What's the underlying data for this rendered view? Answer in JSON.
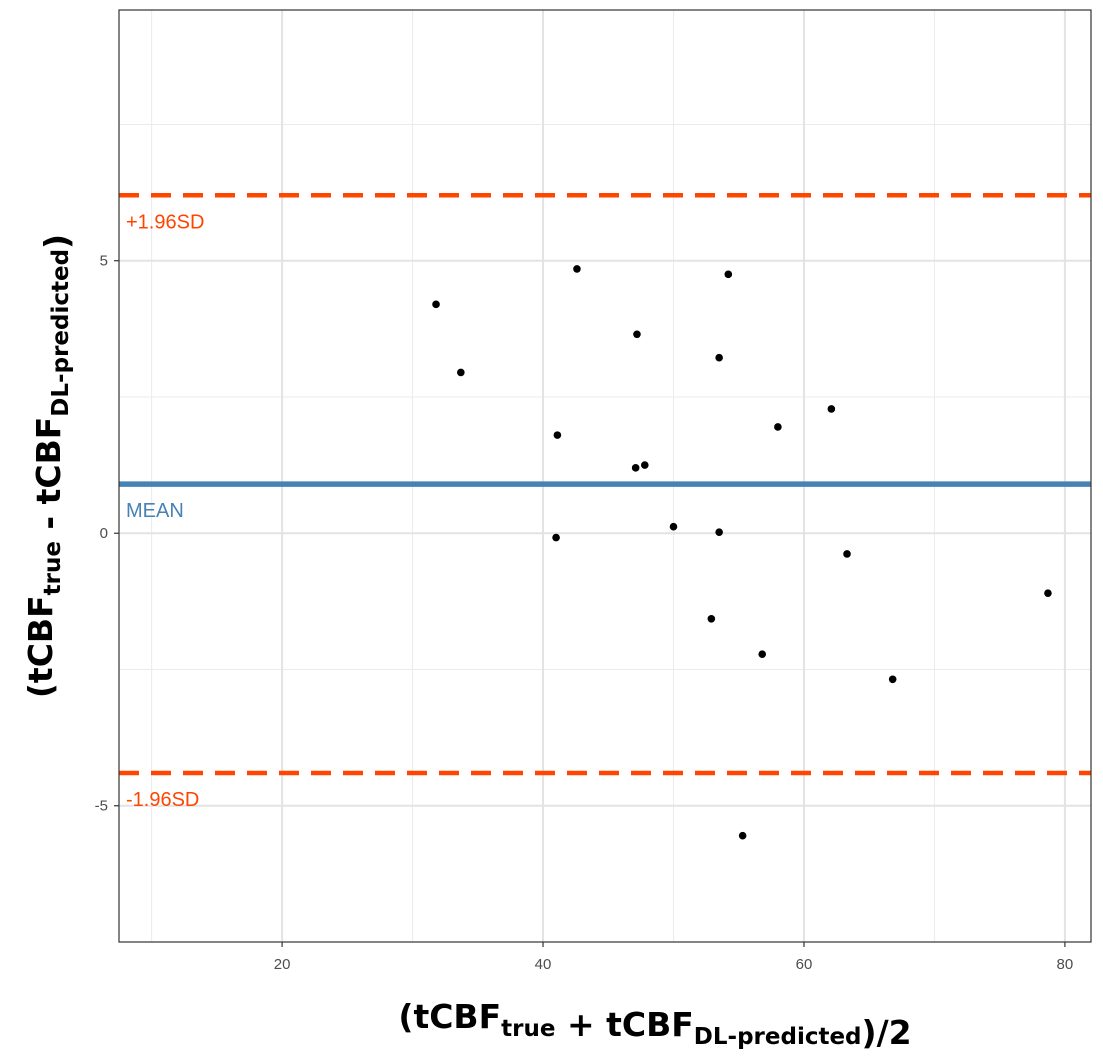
{
  "chart_data": {
    "type": "scatter",
    "title": "",
    "xlabel": {
      "parts": [
        {
          "text": "(tCBF",
          "sub": false
        },
        {
          "text": "true",
          "sub": true
        },
        {
          "text": " + tCBF",
          "sub": false
        },
        {
          "text": "DL-predicted",
          "sub": true
        },
        {
          "text": ")/2",
          "sub": false
        }
      ]
    },
    "ylabel": {
      "parts": [
        {
          "text": "(tCBF",
          "sub": false
        },
        {
          "text": "true",
          "sub": true
        },
        {
          "text": " - tCBF",
          "sub": false
        },
        {
          "text": "DL-predicted",
          "sub": true
        },
        {
          "text": ")",
          "sub": false
        }
      ]
    },
    "xlim": [
      7.5,
      82
    ],
    "ylim": [
      -7.5,
      9.6
    ],
    "xticks": [
      {
        "value": 20,
        "label": "20"
      },
      {
        "value": 40,
        "label": "40"
      },
      {
        "value": 60,
        "label": "60"
      },
      {
        "value": 80,
        "label": "80"
      }
    ],
    "yticks": [
      {
        "value": -5,
        "label": "-5"
      },
      {
        "value": 0,
        "label": "0"
      },
      {
        "value": 5,
        "label": "5"
      }
    ],
    "x_minor_gridlines": [
      10,
      30,
      50,
      70
    ],
    "y_minor_gridlines": [
      -7.5,
      -2.5,
      2.5,
      7.5
    ],
    "grid": true,
    "reference_lines": [
      {
        "name": "upper",
        "y": 6.2,
        "style": "dashed",
        "color": "#ff4500",
        "label": "+1.96SD"
      },
      {
        "name": "mean",
        "y": 0.9,
        "style": "solid",
        "color": "#4682b4",
        "label": "MEAN"
      },
      {
        "name": "lower",
        "y": -4.4,
        "style": "dashed",
        "color": "#ff4500",
        "label": "-1.96SD"
      }
    ],
    "points": [
      {
        "x": 31.8,
        "y": 4.2
      },
      {
        "x": 33.7,
        "y": 2.95
      },
      {
        "x": 41.1,
        "y": 1.8
      },
      {
        "x": 42.6,
        "y": 4.85
      },
      {
        "x": 47.2,
        "y": 3.65
      },
      {
        "x": 47.1,
        "y": 1.2
      },
      {
        "x": 47.8,
        "y": 1.25
      },
      {
        "x": 41.0,
        "y": -0.08
      },
      {
        "x": 50.0,
        "y": 0.12
      },
      {
        "x": 53.5,
        "y": 3.22
      },
      {
        "x": 54.2,
        "y": 4.75
      },
      {
        "x": 53.5,
        "y": 0.02
      },
      {
        "x": 52.9,
        "y": -1.57
      },
      {
        "x": 56.8,
        "y": -2.22
      },
      {
        "x": 58.0,
        "y": 1.95
      },
      {
        "x": 62.1,
        "y": 2.28
      },
      {
        "x": 63.3,
        "y": -0.38
      },
      {
        "x": 55.3,
        "y": -5.55
      },
      {
        "x": 66.8,
        "y": -2.68
      },
      {
        "x": 78.7,
        "y": -1.1
      }
    ],
    "point_color": "#000000"
  }
}
